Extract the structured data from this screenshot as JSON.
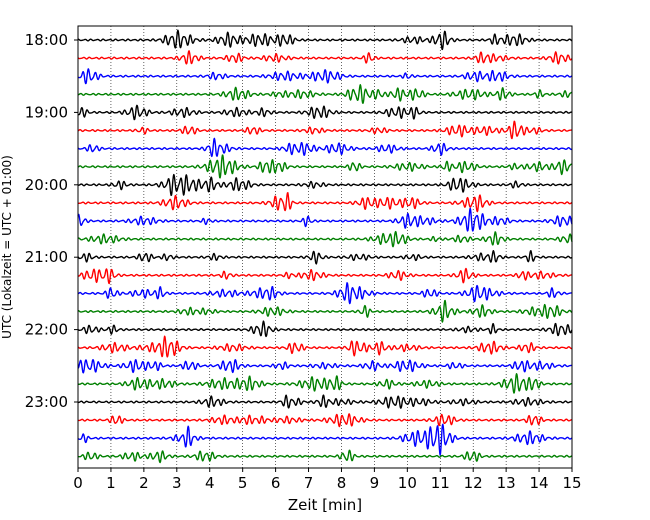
{
  "chart_data": {
    "type": "line",
    "title": "",
    "xlabel": "Zeit  [min]",
    "ylabel": "UTC (Lokalzeit = UTC + 01:00)",
    "xlim": [
      0,
      15
    ],
    "x_ticks": [
      "0",
      "1",
      "2",
      "3",
      "4",
      "5",
      "6",
      "7",
      "8",
      "9",
      "10",
      "11",
      "12",
      "13",
      "14",
      "15"
    ],
    "y_tick_labels": [
      "18:00",
      "19:00",
      "20:00",
      "21:00",
      "22:00",
      "23:00"
    ],
    "rows_per_hour": 4,
    "trace_count": 24,
    "trace_colors": [
      "#000000",
      "#ff0000",
      "#0000ff",
      "#008000"
    ],
    "grid": "vertical dotted lines at each minute",
    "legend": "none"
  }
}
